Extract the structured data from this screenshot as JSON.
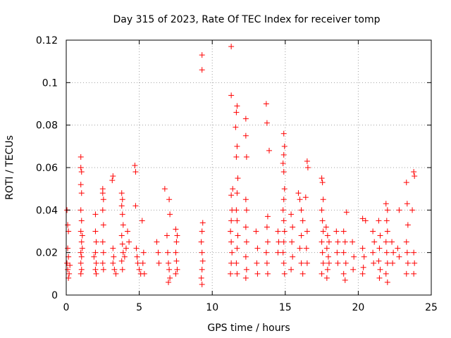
{
  "chart_data": {
    "type": "scatter",
    "title": "Day 315 of 2023, Rate Of TEC Index for receiver tomp",
    "xlabel": "GPS time / hours",
    "ylabel": "ROTI / TECUs",
    "xlim": [
      0,
      25
    ],
    "ylim": [
      0,
      0.12
    ],
    "x_ticks": [
      0,
      5,
      10,
      15,
      20,
      25
    ],
    "y_ticks": [
      0,
      0.02,
      0.04,
      0.06,
      0.08,
      0.1,
      0.12
    ],
    "grid": true,
    "marker": "+",
    "color": "#ff0000",
    "points": [
      [
        0.05,
        0.04
      ],
      [
        0.1,
        0.033
      ],
      [
        0.15,
        0.03
      ],
      [
        0.1,
        0.022
      ],
      [
        0.15,
        0.018
      ],
      [
        0.05,
        0.015
      ],
      [
        0.1,
        0.012
      ],
      [
        0.2,
        0.01
      ],
      [
        0.15,
        0.008
      ],
      [
        0.25,
        0.014
      ],
      [
        1.0,
        0.065
      ],
      [
        1.0,
        0.06
      ],
      [
        1.05,
        0.058
      ],
      [
        1.0,
        0.052
      ],
      [
        1.05,
        0.048
      ],
      [
        1.0,
        0.04
      ],
      [
        1.05,
        0.035
      ],
      [
        1.0,
        0.03
      ],
      [
        1.05,
        0.025
      ],
      [
        1.0,
        0.02
      ],
      [
        1.05,
        0.018
      ],
      [
        1.0,
        0.015
      ],
      [
        1.05,
        0.012
      ],
      [
        1.0,
        0.01
      ],
      [
        1.1,
        0.028
      ],
      [
        1.1,
        0.022
      ],
      [
        2.0,
        0.038
      ],
      [
        2.0,
        0.03
      ],
      [
        2.05,
        0.025
      ],
      [
        2.0,
        0.02
      ],
      [
        2.05,
        0.015
      ],
      [
        2.0,
        0.012
      ],
      [
        2.05,
        0.01
      ],
      [
        1.9,
        0.018
      ],
      [
        2.5,
        0.05
      ],
      [
        2.5,
        0.048
      ],
      [
        2.55,
        0.045
      ],
      [
        2.5,
        0.04
      ],
      [
        2.55,
        0.033
      ],
      [
        2.5,
        0.025
      ],
      [
        2.55,
        0.02
      ],
      [
        2.5,
        0.015
      ],
      [
        2.55,
        0.012
      ],
      [
        3.2,
        0.056
      ],
      [
        3.15,
        0.054
      ],
      [
        3.2,
        0.022
      ],
      [
        3.25,
        0.018
      ],
      [
        3.2,
        0.015
      ],
      [
        3.3,
        0.012
      ],
      [
        3.4,
        0.01
      ],
      [
        3.8,
        0.048
      ],
      [
        3.85,
        0.045
      ],
      [
        3.8,
        0.042
      ],
      [
        3.85,
        0.038
      ],
      [
        3.9,
        0.033
      ],
      [
        3.8,
        0.028
      ],
      [
        3.85,
        0.024
      ],
      [
        3.9,
        0.02
      ],
      [
        3.8,
        0.016
      ],
      [
        3.85,
        0.012
      ],
      [
        4.0,
        0.018
      ],
      [
        4.1,
        0.022
      ],
      [
        4.2,
        0.03
      ],
      [
        4.3,
        0.025
      ],
      [
        4.7,
        0.061
      ],
      [
        4.75,
        0.058
      ],
      [
        4.75,
        0.042
      ],
      [
        4.8,
        0.022
      ],
      [
        4.85,
        0.018
      ],
      [
        4.9,
        0.015
      ],
      [
        5.0,
        0.012
      ],
      [
        5.1,
        0.01
      ],
      [
        5.2,
        0.035
      ],
      [
        5.3,
        0.02
      ],
      [
        5.25,
        0.015
      ],
      [
        5.35,
        0.01
      ],
      [
        6.2,
        0.025
      ],
      [
        6.3,
        0.02
      ],
      [
        6.35,
        0.015
      ],
      [
        6.75,
        0.05
      ],
      [
        6.9,
        0.028
      ],
      [
        6.95,
        0.02
      ],
      [
        7.0,
        0.015
      ],
      [
        7.05,
        0.012
      ],
      [
        7.1,
        0.008
      ],
      [
        7.0,
        0.006
      ],
      [
        7.05,
        0.045
      ],
      [
        7.1,
        0.038
      ],
      [
        7.5,
        0.031
      ],
      [
        7.6,
        0.028
      ],
      [
        7.55,
        0.025
      ],
      [
        7.5,
        0.02
      ],
      [
        7.55,
        0.016
      ],
      [
        7.6,
        0.012
      ],
      [
        7.5,
        0.01
      ],
      [
        9.3,
        0.113
      ],
      [
        9.3,
        0.106
      ],
      [
        9.35,
        0.034
      ],
      [
        9.3,
        0.03
      ],
      [
        9.25,
        0.025
      ],
      [
        9.3,
        0.02
      ],
      [
        9.35,
        0.016
      ],
      [
        9.3,
        0.012
      ],
      [
        9.25,
        0.008
      ],
      [
        9.3,
        0.005
      ],
      [
        11.3,
        0.117
      ],
      [
        11.3,
        0.094
      ],
      [
        11.4,
        0.05
      ],
      [
        11.3,
        0.047
      ],
      [
        11.35,
        0.04
      ],
      [
        11.3,
        0.035
      ],
      [
        11.25,
        0.03
      ],
      [
        11.3,
        0.025
      ],
      [
        11.35,
        0.02
      ],
      [
        11.3,
        0.015
      ],
      [
        11.25,
        0.01
      ],
      [
        11.7,
        0.089
      ],
      [
        11.65,
        0.086
      ],
      [
        11.6,
        0.079
      ],
      [
        11.7,
        0.07
      ],
      [
        11.65,
        0.065
      ],
      [
        11.75,
        0.055
      ],
      [
        11.7,
        0.048
      ],
      [
        11.65,
        0.04
      ],
      [
        11.7,
        0.035
      ],
      [
        11.75,
        0.028
      ],
      [
        11.7,
        0.022
      ],
      [
        11.65,
        0.015
      ],
      [
        11.7,
        0.01
      ],
      [
        12.3,
        0.083
      ],
      [
        12.3,
        0.075
      ],
      [
        12.35,
        0.065
      ],
      [
        12.3,
        0.045
      ],
      [
        12.35,
        0.04
      ],
      [
        12.3,
        0.032
      ],
      [
        12.35,
        0.025
      ],
      [
        12.3,
        0.018
      ],
      [
        12.35,
        0.012
      ],
      [
        12.3,
        0.008
      ],
      [
        13.0,
        0.03
      ],
      [
        13.1,
        0.022
      ],
      [
        13.05,
        0.015
      ],
      [
        13.1,
        0.01
      ],
      [
        13.7,
        0.09
      ],
      [
        13.75,
        0.081
      ],
      [
        13.9,
        0.068
      ],
      [
        13.8,
        0.037
      ],
      [
        13.75,
        0.032
      ],
      [
        13.8,
        0.025
      ],
      [
        13.7,
        0.02
      ],
      [
        13.75,
        0.015
      ],
      [
        13.8,
        0.01
      ],
      [
        14.5,
        0.03
      ],
      [
        14.55,
        0.025
      ],
      [
        14.5,
        0.02
      ],
      [
        14.9,
        0.076
      ],
      [
        14.95,
        0.07
      ],
      [
        14.9,
        0.066
      ],
      [
        14.85,
        0.062
      ],
      [
        14.9,
        0.058
      ],
      [
        14.95,
        0.05
      ],
      [
        14.9,
        0.045
      ],
      [
        14.85,
        0.04
      ],
      [
        14.9,
        0.035
      ],
      [
        14.95,
        0.03
      ],
      [
        14.9,
        0.025
      ],
      [
        14.85,
        0.02
      ],
      [
        14.9,
        0.015
      ],
      [
        14.95,
        0.01
      ],
      [
        15.4,
        0.038
      ],
      [
        15.5,
        0.032
      ],
      [
        15.45,
        0.025
      ],
      [
        15.5,
        0.018
      ],
      [
        15.4,
        0.012
      ],
      [
        15.9,
        0.048
      ],
      [
        16.0,
        0.045
      ],
      [
        16.1,
        0.04
      ],
      [
        16.2,
        0.035
      ],
      [
        16.1,
        0.028
      ],
      [
        16.0,
        0.022
      ],
      [
        16.1,
        0.015
      ],
      [
        16.2,
        0.01
      ],
      [
        16.5,
        0.063
      ],
      [
        16.55,
        0.06
      ],
      [
        16.4,
        0.046
      ],
      [
        16.5,
        0.03
      ],
      [
        16.45,
        0.022
      ],
      [
        16.5,
        0.015
      ],
      [
        17.5,
        0.055
      ],
      [
        17.55,
        0.053
      ],
      [
        17.6,
        0.045
      ],
      [
        17.5,
        0.04
      ],
      [
        17.55,
        0.035
      ],
      [
        17.6,
        0.03
      ],
      [
        17.5,
        0.025
      ],
      [
        17.55,
        0.02
      ],
      [
        17.6,
        0.015
      ],
      [
        17.5,
        0.01
      ],
      [
        17.8,
        0.032
      ],
      [
        17.9,
        0.028
      ],
      [
        18.0,
        0.025
      ],
      [
        17.85,
        0.022
      ],
      [
        17.95,
        0.018
      ],
      [
        18.0,
        0.015
      ],
      [
        17.9,
        0.012
      ],
      [
        17.85,
        0.008
      ],
      [
        18.5,
        0.03
      ],
      [
        18.6,
        0.025
      ],
      [
        18.55,
        0.02
      ],
      [
        18.6,
        0.015
      ],
      [
        19.2,
        0.039
      ],
      [
        19.0,
        0.03
      ],
      [
        19.1,
        0.025
      ],
      [
        19.0,
        0.02
      ],
      [
        19.15,
        0.015
      ],
      [
        19.0,
        0.01
      ],
      [
        19.1,
        0.007
      ],
      [
        19.6,
        0.025
      ],
      [
        19.7,
        0.018
      ],
      [
        19.65,
        0.012
      ],
      [
        20.3,
        0.036
      ],
      [
        20.5,
        0.035
      ],
      [
        20.3,
        0.022
      ],
      [
        20.4,
        0.018
      ],
      [
        20.35,
        0.013
      ],
      [
        20.3,
        0.01
      ],
      [
        21.0,
        0.03
      ],
      [
        21.1,
        0.025
      ],
      [
        21.0,
        0.02
      ],
      [
        21.05,
        0.015
      ],
      [
        21.4,
        0.035
      ],
      [
        21.5,
        0.028
      ],
      [
        21.45,
        0.022
      ],
      [
        21.4,
        0.016
      ],
      [
        21.5,
        0.012
      ],
      [
        21.45,
        0.008
      ],
      [
        21.9,
        0.043
      ],
      [
        22.0,
        0.04
      ],
      [
        21.95,
        0.035
      ],
      [
        22.0,
        0.03
      ],
      [
        21.9,
        0.025
      ],
      [
        21.95,
        0.02
      ],
      [
        22.0,
        0.015
      ],
      [
        21.9,
        0.01
      ],
      [
        22.0,
        0.006
      ],
      [
        22.3,
        0.025
      ],
      [
        22.4,
        0.02
      ],
      [
        22.35,
        0.015
      ],
      [
        22.8,
        0.04
      ],
      [
        22.7,
        0.022
      ],
      [
        22.8,
        0.018
      ],
      [
        23.3,
        0.053
      ],
      [
        23.35,
        0.043
      ],
      [
        23.4,
        0.033
      ],
      [
        23.3,
        0.025
      ],
      [
        23.35,
        0.02
      ],
      [
        23.4,
        0.015
      ],
      [
        23.3,
        0.01
      ],
      [
        23.8,
        0.058
      ],
      [
        23.85,
        0.056
      ],
      [
        23.7,
        0.04
      ],
      [
        23.8,
        0.02
      ],
      [
        23.85,
        0.015
      ],
      [
        23.8,
        0.01
      ]
    ]
  }
}
